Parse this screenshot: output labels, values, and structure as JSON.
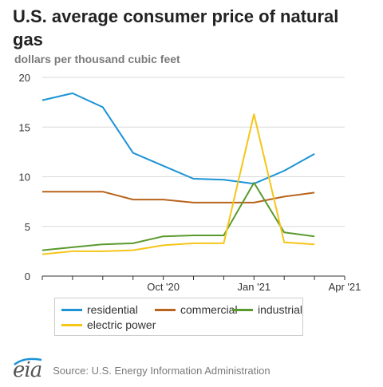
{
  "title": "U.S. average consumer price of natural gas",
  "subtitle": "dollars per thousand cubic feet",
  "source": "Source: U.S. Energy Information Administration",
  "logo_text": "eia",
  "colors": {
    "residential": "#1b93d6",
    "commercial": "#b8641c",
    "industrial": "#5a9a2c",
    "electric power": "#f5c518",
    "grid": "#d9d9d9",
    "axis": "#333333"
  },
  "legend": {
    "residential": "residential",
    "commercial": "commercial",
    "industrial": "industrial",
    "electric_power": "electric power"
  },
  "chart_data": {
    "type": "line",
    "title": "U.S. average consumer price of natural gas",
    "ylabel": "dollars per thousand cubic feet",
    "x": [
      "2020-06",
      "2020-07",
      "2020-08",
      "2020-09",
      "2020-10",
      "2020-11",
      "2020-12",
      "2021-01",
      "2021-02",
      "2021-03",
      "2021-04"
    ],
    "x_ticks": [
      {
        "label": "Oct '20",
        "at": "2020-10"
      },
      {
        "label": "Jan '21",
        "at": "2021-01"
      },
      {
        "label": "Apr '21",
        "at": "2021-04"
      }
    ],
    "ylim": [
      0,
      20
    ],
    "y_ticks": [
      0,
      5,
      10,
      15,
      20
    ],
    "grid": true,
    "legend_position": "bottom",
    "series": [
      {
        "name": "residential",
        "values": [
          17.7,
          18.4,
          17.0,
          12.4,
          11.1,
          9.8,
          9.7,
          9.3,
          10.6,
          12.3,
          null
        ]
      },
      {
        "name": "commercial",
        "values": [
          8.5,
          8.5,
          8.5,
          7.7,
          7.7,
          7.4,
          7.4,
          7.4,
          8.0,
          8.4,
          null
        ]
      },
      {
        "name": "industrial",
        "values": [
          2.6,
          2.9,
          3.2,
          3.3,
          4.0,
          4.1,
          4.1,
          9.4,
          4.4,
          4.0,
          null
        ]
      },
      {
        "name": "electric power",
        "values": [
          2.2,
          2.5,
          2.5,
          2.6,
          3.1,
          3.3,
          3.3,
          16.3,
          3.4,
          3.2,
          null
        ]
      }
    ]
  }
}
